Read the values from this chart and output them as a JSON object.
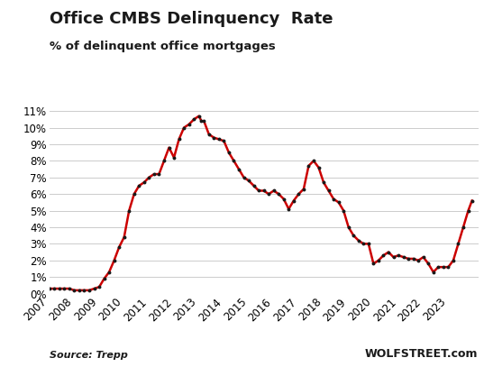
{
  "title": "Office CMBS Delinquency  Rate",
  "subtitle": "% of delinquent office mortgages",
  "source_left": "Source: Trepp",
  "source_right": "WOLFSTREET.com",
  "line_color": "#CC0000",
  "dot_color": "#1a1a1a",
  "background_color": "#ffffff",
  "ylim": [
    0,
    0.115
  ],
  "yticks": [
    0,
    0.01,
    0.02,
    0.03,
    0.04,
    0.05,
    0.06,
    0.07,
    0.08,
    0.09,
    0.1,
    0.11
  ],
  "ytick_labels": [
    "0%",
    "1%",
    "2%",
    "3%",
    "4%",
    "5%",
    "6%",
    "7%",
    "8%",
    "9%",
    "10%",
    "11%"
  ],
  "data": [
    [
      2007.0,
      0.003
    ],
    [
      2007.2,
      0.003
    ],
    [
      2007.4,
      0.003
    ],
    [
      2007.6,
      0.003
    ],
    [
      2007.8,
      0.003
    ],
    [
      2008.0,
      0.002
    ],
    [
      2008.2,
      0.002
    ],
    [
      2008.4,
      0.002
    ],
    [
      2008.6,
      0.002
    ],
    [
      2008.8,
      0.003
    ],
    [
      2009.0,
      0.004
    ],
    [
      2009.2,
      0.009
    ],
    [
      2009.4,
      0.013
    ],
    [
      2009.6,
      0.02
    ],
    [
      2009.8,
      0.028
    ],
    [
      2010.0,
      0.034
    ],
    [
      2010.2,
      0.05
    ],
    [
      2010.4,
      0.06
    ],
    [
      2010.6,
      0.065
    ],
    [
      2010.8,
      0.067
    ],
    [
      2011.0,
      0.07
    ],
    [
      2011.2,
      0.072
    ],
    [
      2011.4,
      0.072
    ],
    [
      2011.6,
      0.08
    ],
    [
      2011.8,
      0.088
    ],
    [
      2012.0,
      0.082
    ],
    [
      2012.2,
      0.093
    ],
    [
      2012.4,
      0.1
    ],
    [
      2012.6,
      0.102
    ],
    [
      2012.8,
      0.105
    ],
    [
      2013.0,
      0.107
    ],
    [
      2013.1,
      0.104
    ],
    [
      2013.2,
      0.104
    ],
    [
      2013.4,
      0.096
    ],
    [
      2013.6,
      0.094
    ],
    [
      2013.8,
      0.093
    ],
    [
      2014.0,
      0.092
    ],
    [
      2014.2,
      0.085
    ],
    [
      2014.4,
      0.08
    ],
    [
      2014.6,
      0.075
    ],
    [
      2014.8,
      0.07
    ],
    [
      2015.0,
      0.068
    ],
    [
      2015.2,
      0.065
    ],
    [
      2015.4,
      0.062
    ],
    [
      2015.6,
      0.062
    ],
    [
      2015.8,
      0.06
    ],
    [
      2016.0,
      0.062
    ],
    [
      2016.2,
      0.06
    ],
    [
      2016.4,
      0.057
    ],
    [
      2016.6,
      0.051
    ],
    [
      2016.8,
      0.056
    ],
    [
      2017.0,
      0.06
    ],
    [
      2017.2,
      0.063
    ],
    [
      2017.4,
      0.077
    ],
    [
      2017.6,
      0.08
    ],
    [
      2017.8,
      0.076
    ],
    [
      2018.0,
      0.067
    ],
    [
      2018.2,
      0.062
    ],
    [
      2018.4,
      0.057
    ],
    [
      2018.6,
      0.055
    ],
    [
      2018.8,
      0.05
    ],
    [
      2019.0,
      0.04
    ],
    [
      2019.2,
      0.035
    ],
    [
      2019.4,
      0.032
    ],
    [
      2019.6,
      0.03
    ],
    [
      2019.8,
      0.03
    ],
    [
      2020.0,
      0.018
    ],
    [
      2020.2,
      0.02
    ],
    [
      2020.4,
      0.023
    ],
    [
      2020.6,
      0.025
    ],
    [
      2020.8,
      0.022
    ],
    [
      2021.0,
      0.023
    ],
    [
      2021.2,
      0.022
    ],
    [
      2021.4,
      0.021
    ],
    [
      2021.6,
      0.021
    ],
    [
      2021.8,
      0.02
    ],
    [
      2022.0,
      0.022
    ],
    [
      2022.2,
      0.018
    ],
    [
      2022.4,
      0.013
    ],
    [
      2022.6,
      0.016
    ],
    [
      2022.8,
      0.016
    ],
    [
      2023.0,
      0.016
    ],
    [
      2023.2,
      0.02
    ],
    [
      2023.4,
      0.03
    ],
    [
      2023.6,
      0.04
    ],
    [
      2023.8,
      0.05
    ],
    [
      2023.95,
      0.056
    ]
  ]
}
